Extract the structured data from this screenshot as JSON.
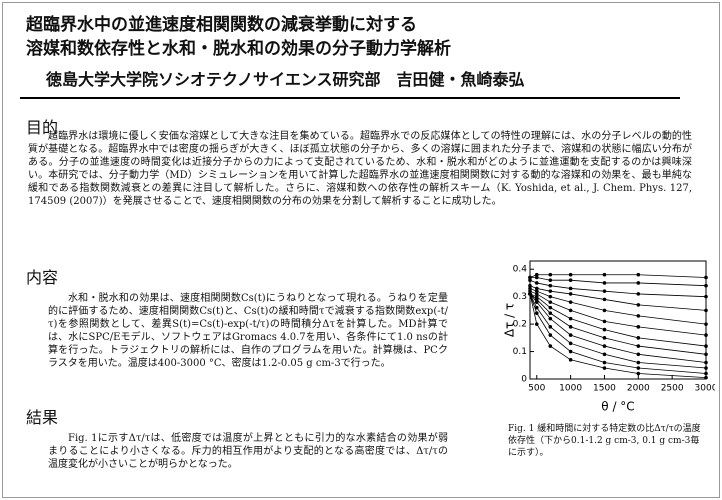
{
  "header": {
    "title_lines": [
      "超臨界水中の並進速度相関関数の減衰挙動に対する",
      "溶媒和数依存性と水和・脱水和の効果の分子動力学解析"
    ],
    "authors": "徳島大学大学院ソシオテクノサイエンス研究部　吉田健・魚崎泰弘"
  },
  "sections": [
    {
      "heading": "目的",
      "text": "超臨界水は環境に優しく安価な溶媒として大きな注目を集めている。超臨界水での反応媒体としての特性の理解には、水の分子レベルの動的性質が基礎となる。超臨界水中では密度の揺らぎが大きく、ほぼ孤立状態の分子から、多くの溶媒に囲まれた分子まで、溶媒和の状態に幅広い分布がある。分子の並進速度の時間変化は近接分子からの力によって支配されているため、水和・脱水和がどのように並進運動を支配するのかは興味深い。本研究では、分子動力学（MD）シミュレーションを用いて計算した超臨界水の並進速度相関関数に対する動的な溶媒和の効果を、最も単純な緩和である指数関数減衰との差異に注目して解析した。さらに、溶媒和数への依存性の解析スキーム（K. Yoshida, et al., J. Chem. Phys. 127, 174509 (2007)）を発展させることで、速度相関関数の分布の効果を分割して解析することに成功した。"
    },
    {
      "heading": "内容",
      "text": "水和・脱水和の効果は、速度相関関数Cs(t)にうねりとなって現れる。うねりを定量的に評価するため、速度相関関数Cs(t)と、Cs(t)の緩和時間τで減衰する指数関数exp(-t/τ)を参照関数として、差異S(t)=Cs(t)-exp(-t/τ)の時間積分Δτを計算した。MD計算では、水にSPC/Eモデル、ソフトウェアはGromacs 4.0.7を用い、各条件にて1.0 nsの計算を行った。トラジェクトリの解析には、自作のプログラムを用いた。計算機は、PCクラスタを用いた。温度は400-3000 °C、密度は1.2-0.05 g cm-3で行った。"
    },
    {
      "heading": "結果",
      "text": "Fig. 1に示すΔτ/τは、低密度では温度が上昇とともに引力的な水素結合の効果が弱まりることにより小さくなる。斥力的相互作用がより支配的となる高密度では、Δτ/τの温度変化が小さいことが明らかとなった。"
    }
  ],
  "caption": "Fig. 1 緩和時間に対する特定数の比Δτ/τの温度依存性（下から0.1-1.2 g cm-3, 0.1 g cm-3毎に示す）。",
  "chart_data": {
    "type": "line",
    "x_label": "θ / °C",
    "y_label": "Δτ / τ",
    "x": [
      400,
      500,
      700,
      1000,
      1500,
      2000,
      3000
    ],
    "xlim": [
      400,
      3000
    ],
    "xticks": [
      500,
      1000,
      1500,
      2000,
      2500,
      3000
    ],
    "ylim": [
      0,
      0.43
    ],
    "yticks": [
      0,
      0.1,
      0.2,
      0.3,
      0.4
    ],
    "series": [
      {
        "color": "#000000",
        "values": [
          0.31,
          0.2,
          0.12,
          0.07,
          0.04,
          0.02,
          0.005
        ]
      },
      {
        "color": "#000000",
        "values": [
          0.31,
          0.24,
          0.16,
          0.1,
          0.06,
          0.04,
          0.02
        ]
      },
      {
        "color": "#000000",
        "values": [
          0.31,
          0.26,
          0.19,
          0.13,
          0.09,
          0.06,
          0.04
        ]
      },
      {
        "color": "#000000",
        "values": [
          0.31,
          0.28,
          0.22,
          0.16,
          0.12,
          0.09,
          0.06
        ]
      },
      {
        "color": "#000000",
        "values": [
          0.31,
          0.29,
          0.24,
          0.19,
          0.15,
          0.12,
          0.09
        ]
      },
      {
        "color": "#000000",
        "values": [
          0.31,
          0.3,
          0.26,
          0.22,
          0.18,
          0.15,
          0.12
        ]
      },
      {
        "color": "#000000",
        "values": [
          0.32,
          0.31,
          0.28,
          0.25,
          0.21,
          0.19,
          0.16
        ]
      },
      {
        "color": "#000000",
        "values": [
          0.33,
          0.32,
          0.3,
          0.28,
          0.25,
          0.23,
          0.2
        ]
      },
      {
        "color": "#000000",
        "values": [
          0.34,
          0.33,
          0.32,
          0.31,
          0.29,
          0.27,
          0.25
        ]
      },
      {
        "color": "#000000",
        "values": [
          0.36,
          0.35,
          0.34,
          0.33,
          0.32,
          0.31,
          0.3
        ]
      },
      {
        "color": "#000000",
        "values": [
          0.37,
          0.37,
          0.36,
          0.36,
          0.35,
          0.35,
          0.34
        ]
      },
      {
        "color": "#000000",
        "values": [
          0.37,
          0.38,
          0.38,
          0.38,
          0.38,
          0.38,
          0.37
        ]
      }
    ]
  }
}
